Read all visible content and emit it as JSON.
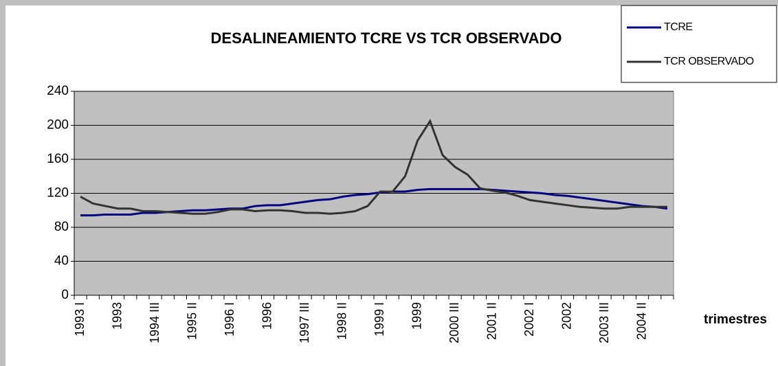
{
  "chart_data": {
    "type": "line",
    "title": "DESALINEAMIENTO TCRE VS TCR OBSERVADO",
    "x_label": "trimestres",
    "categories": [
      "1993 I",
      null,
      null,
      "1993",
      null,
      null,
      "1994 III",
      null,
      null,
      "1995 II",
      null,
      null,
      "1996 I",
      null,
      null,
      "1996",
      null,
      null,
      "1997 III",
      null,
      null,
      "1998 II",
      null,
      null,
      "1999 I",
      null,
      null,
      "1999",
      null,
      null,
      "2000 III",
      null,
      null,
      "2001 II",
      null,
      null,
      "2002 I",
      null,
      null,
      "2002",
      null,
      null,
      "2003 III",
      null,
      null,
      "2004 II",
      null,
      null
    ],
    "series": [
      {
        "name": "TCRE",
        "color": "#000080",
        "values": [
          94,
          94,
          95,
          95,
          95,
          97,
          97,
          98,
          99,
          100,
          100,
          101,
          102,
          102,
          105,
          106,
          106,
          108,
          110,
          112,
          113,
          116,
          118,
          119,
          121,
          122,
          122,
          124,
          125,
          125,
          125,
          125,
          125,
          124,
          123,
          122,
          121,
          120,
          118,
          117,
          115,
          113,
          111,
          109,
          107,
          105,
          104,
          102
        ]
      },
      {
        "name": "TCR OBSERVADO",
        "color": "#333333",
        "values": [
          116,
          108,
          105,
          102,
          102,
          99,
          99,
          98,
          97,
          96,
          96,
          98,
          101,
          101,
          99,
          100,
          100,
          99,
          97,
          97,
          96,
          97,
          99,
          105,
          122,
          122,
          140,
          182,
          205,
          165,
          151,
          142,
          126,
          123,
          121,
          117,
          112,
          110,
          108,
          106,
          104,
          103,
          102,
          102,
          104,
          104,
          104,
          104
        ]
      }
    ],
    "ylim": [
      0,
      240
    ],
    "yticks": [
      0,
      40,
      80,
      120,
      160,
      200,
      240
    ],
    "grid": true,
    "legend": "top-right"
  }
}
